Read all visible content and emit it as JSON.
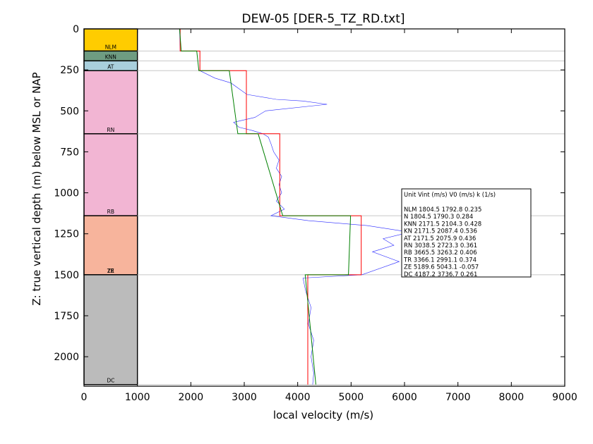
{
  "chart_data": {
    "type": "line",
    "title": "DEW-05 [DER-5_TZ_RD.txt]",
    "xlabel": "local velocity (m/s)",
    "ylabel": "Z: true vertical depth (m) below MSL or NAP",
    "xlim": [
      0,
      9000
    ],
    "ylim": [
      2180,
      0
    ],
    "x_ticks": [
      "0",
      "1000",
      "2000",
      "3000",
      "4000",
      "5000",
      "6000",
      "7000",
      "8000",
      "9000"
    ],
    "y_ticks": [
      "0",
      "250",
      "500",
      "750",
      "1000",
      "1250",
      "1500",
      "1750",
      "2000"
    ],
    "units": [
      {
        "label": "NLM",
        "top": 0,
        "bottom": 135,
        "color": "#ffcc00"
      },
      {
        "label": "KNN",
        "top": 135,
        "bottom": 195,
        "color": "#6e9c82"
      },
      {
        "label": "AT",
        "top": 195,
        "bottom": 255,
        "color": "#a9cfdc"
      },
      {
        "label": "RN",
        "top": 255,
        "bottom": 640,
        "color": "#f2b5d3"
      },
      {
        "label": "RB",
        "top": 640,
        "bottom": 1140,
        "color": "#f2b5d3"
      },
      {
        "label": "ZE",
        "top": 1140,
        "bottom": 1500,
        "color": "#f7b49c"
      },
      {
        "label": "TR",
        "top": 1140,
        "bottom": 1500,
        "color": "#f7b49c"
      },
      {
        "label": "DC",
        "top": 1500,
        "bottom": 2170,
        "color": "#bbbbbb"
      }
    ],
    "boundaries": [
      135,
      195,
      255,
      640,
      1140,
      1500,
      2170
    ],
    "series": [
      {
        "color": "#ff0000",
        "points": [
          [
            1800,
            0
          ],
          [
            1800,
            135
          ],
          [
            2170,
            135
          ],
          [
            2170,
            255
          ],
          [
            3040,
            255
          ],
          [
            3040,
            640
          ],
          [
            3665,
            640
          ],
          [
            3665,
            1140
          ],
          [
            5190,
            1140
          ],
          [
            5190,
            1500
          ],
          [
            4190,
            1500
          ],
          [
            4190,
            2170
          ]
        ]
      },
      {
        "color": "#008000",
        "points": [
          [
            1790,
            0
          ],
          [
            1820,
            135
          ],
          [
            2110,
            135
          ],
          [
            2150,
            255
          ],
          [
            2720,
            255
          ],
          [
            2880,
            640
          ],
          [
            3260,
            640
          ],
          [
            3720,
            1140
          ],
          [
            4990,
            1140
          ],
          [
            4950,
            1500
          ],
          [
            4140,
            1500
          ],
          [
            4340,
            2170
          ]
        ]
      },
      {
        "color": "#0000ff",
        "points": [
          [
            1790,
            0
          ],
          [
            1800,
            135
          ],
          [
            2170,
            135
          ],
          [
            2170,
            255
          ],
          [
            2450,
            300
          ],
          [
            2750,
            330
          ],
          [
            3050,
            400
          ],
          [
            3600,
            430
          ],
          [
            4100,
            440
          ],
          [
            4550,
            460
          ],
          [
            3400,
            500
          ],
          [
            3200,
            540
          ],
          [
            2800,
            570
          ],
          [
            2900,
            600
          ],
          [
            3150,
            620
          ],
          [
            3350,
            640
          ],
          [
            3450,
            660
          ],
          [
            3500,
            700
          ],
          [
            3550,
            750
          ],
          [
            3650,
            800
          ],
          [
            3600,
            850
          ],
          [
            3700,
            900
          ],
          [
            3650,
            950
          ],
          [
            3700,
            1000
          ],
          [
            3600,
            1050
          ],
          [
            3750,
            1100
          ],
          [
            3500,
            1140
          ],
          [
            4200,
            1170
          ],
          [
            5300,
            1200
          ],
          [
            6100,
            1240
          ],
          [
            5600,
            1280
          ],
          [
            5800,
            1320
          ],
          [
            5400,
            1360
          ],
          [
            5900,
            1420
          ],
          [
            5200,
            1500
          ],
          [
            4100,
            1520
          ],
          [
            4150,
            1600
          ],
          [
            4250,
            1700
          ],
          [
            4200,
            1800
          ],
          [
            4300,
            1900
          ],
          [
            4250,
            2000
          ],
          [
            4300,
            2100
          ],
          [
            4280,
            2170
          ]
        ]
      }
    ],
    "legend": {
      "header": "Unit    Vint (m/s)       V0 (m/s)         k (1/s)",
      "rows": [
        "NLM     1804.5  1792.8  0.235",
        "N       1804.5  1790.3  0.284",
        "KNN      2171.5  2104.3  0.428",
        "KN      2171.5  2087.4  0.536",
        "AT      2171.5  2075.9  0.436",
        "RN      3038.5  2723.3  0.361",
        "RB      3665.5  3263.2  0.406",
        "TR      3366.1  2991.1  0.374",
        "ZE      5189.6  5043.1  -0.057",
        "DC      4187.2  3736.7  0.261"
      ],
      "position": "right-middle"
    }
  }
}
